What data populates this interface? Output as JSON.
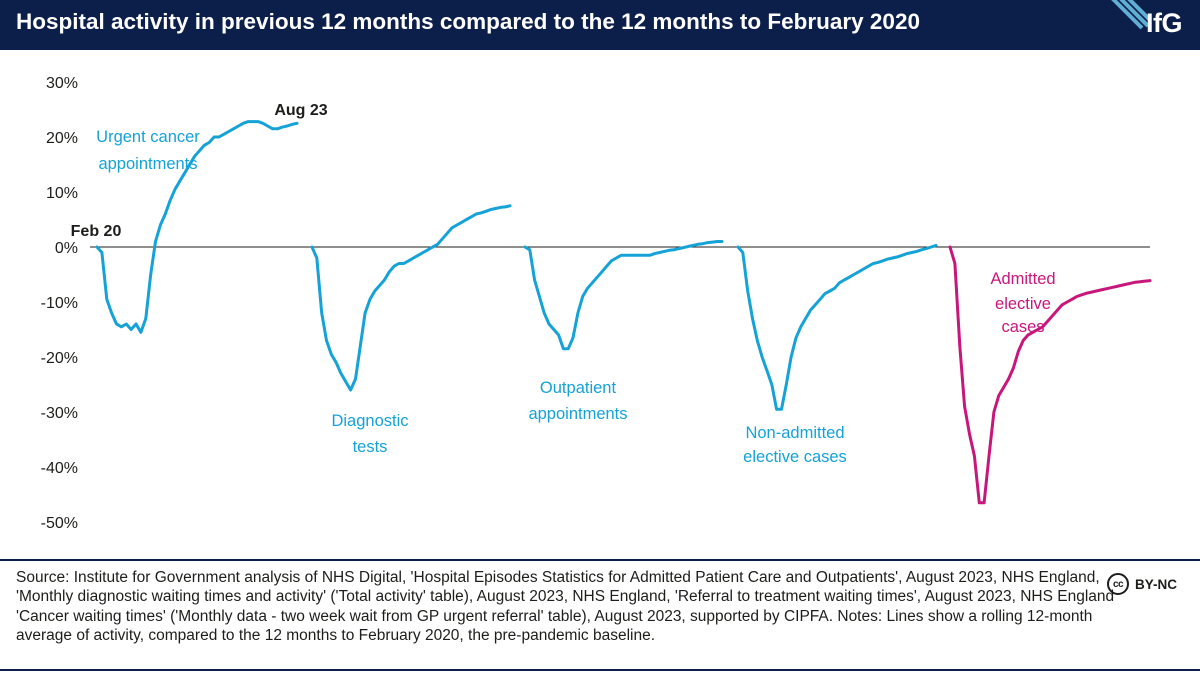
{
  "header": {
    "title": "Hospital activity in previous 12 months compared to the 12 months to February 2020",
    "logo": "IfG"
  },
  "footer": {
    "source": "Source: Institute for Government analysis of NHS Digital, 'Hospital Episodes Statistics for Admitted Patient Care and Outpatients', August 2023, NHS England, 'Monthly diagnostic waiting times and activity' ('Total activity' table), August 2023, NHS England, 'Referral to treatment waiting times', August 2023, NHS England 'Cancer waiting times' ('Monthly data - two week wait from GP urgent referral' table), August 2023, supported by CIPFA. Notes: Lines show a rolling 12-month average of activity, compared to the 12 months to February 2020, the pre-pandemic baseline.",
    "license_icon": "cc",
    "license": "BY-NC"
  },
  "chart_data": {
    "type": "line",
    "title": "Hospital activity in previous 12 months compared to the 12 months to February 2020",
    "ylim": [
      -50,
      30
    ],
    "yticks": [
      30,
      20,
      10,
      0,
      -10,
      -20,
      -30,
      -40,
      -50
    ],
    "ytick_labels": [
      "30%",
      "20%",
      "10%",
      "0%",
      "-10%",
      "-20%",
      "-30%",
      "-40%",
      "-50%"
    ],
    "grid": false,
    "legend": "none",
    "baseline": 0,
    "annotations": {
      "start": "Feb 20",
      "end": "Aug 23"
    },
    "series": [
      {
        "name": "Urgent cancer appointments",
        "color": "#15a2d7",
        "values": [
          0,
          -1,
          -9.5,
          -12,
          -14,
          -14.5,
          -14,
          -15,
          -14,
          -15.5,
          -13,
          -5,
          1,
          4,
          6,
          8.5,
          10.5,
          12,
          13.5,
          15,
          16.5,
          17.5,
          18.5,
          19,
          20,
          20,
          20.5,
          21,
          21.5,
          22,
          22.5,
          22.8,
          22.8,
          22.8,
          22.5,
          22,
          21.5,
          21.5,
          21.8,
          22,
          22.3,
          22.5
        ]
      },
      {
        "name": "Diagnostic tests",
        "color": "#15a2d7",
        "values": [
          0,
          -2,
          -12,
          -17,
          -19.5,
          -21,
          -23,
          -24.5,
          -26,
          -24,
          -18,
          -12,
          -9.5,
          -8,
          -7,
          -6,
          -4.5,
          -3.5,
          -3,
          -3,
          -2.5,
          -2,
          -1.5,
          -1,
          -0.5,
          0,
          0.5,
          1.5,
          2.5,
          3.5,
          4,
          4.5,
          5,
          5.5,
          6,
          6.2,
          6.5,
          6.8,
          7,
          7.2,
          7.3,
          7.5
        ]
      },
      {
        "name": "Outpatient appointments",
        "color": "#15a2d7",
        "values": [
          0,
          -0.5,
          -6,
          -9,
          -12,
          -14,
          -15,
          -16,
          -18.5,
          -18.5,
          -16.5,
          -12,
          -9,
          -7.5,
          -6.5,
          -5.5,
          -4.5,
          -3.5,
          -2.5,
          -2,
          -1.5,
          -1.5,
          -1.5,
          -1.5,
          -1.5,
          -1.5,
          -1.5,
          -1.2,
          -1,
          -0.8,
          -0.6,
          -0.5,
          -0.3,
          -0.1,
          0.1,
          0.3,
          0.5,
          0.6,
          0.8,
          0.9,
          1,
          1
        ]
      },
      {
        "name": "Non-admitted elective cases",
        "color": "#15a2d7",
        "values": [
          0,
          -1,
          -8,
          -13,
          -17,
          -20,
          -22.5,
          -25,
          -29.5,
          -29.5,
          -25,
          -20,
          -16.5,
          -14.5,
          -13,
          -11.5,
          -10.5,
          -9.5,
          -8.5,
          -8,
          -7.5,
          -6.5,
          -6,
          -5.5,
          -5,
          -4.5,
          -4,
          -3.5,
          -3,
          -2.8,
          -2.5,
          -2.2,
          -2,
          -1.8,
          -1.5,
          -1.2,
          -1,
          -0.8,
          -0.5,
          -0.3,
          0,
          0.3
        ]
      },
      {
        "name": "Admitted elective cases",
        "color": "#c8177a",
        "values": [
          0,
          -3,
          -18,
          -29,
          -34,
          -38,
          -46.5,
          -46.5,
          -38,
          -30,
          -27,
          -25.5,
          -24,
          -22,
          -19,
          -17,
          -16,
          -15.5,
          -15,
          -14.5,
          -13.5,
          -12.5,
          -11.5,
          -10.5,
          -10,
          -9.5,
          -9,
          -8.7,
          -8.4,
          -8.2,
          -8,
          -7.8,
          -7.6,
          -7.4,
          -7.2,
          -7,
          -6.8,
          -6.6,
          -6.4,
          -6.3,
          -6.2,
          -6.1
        ]
      }
    ]
  }
}
